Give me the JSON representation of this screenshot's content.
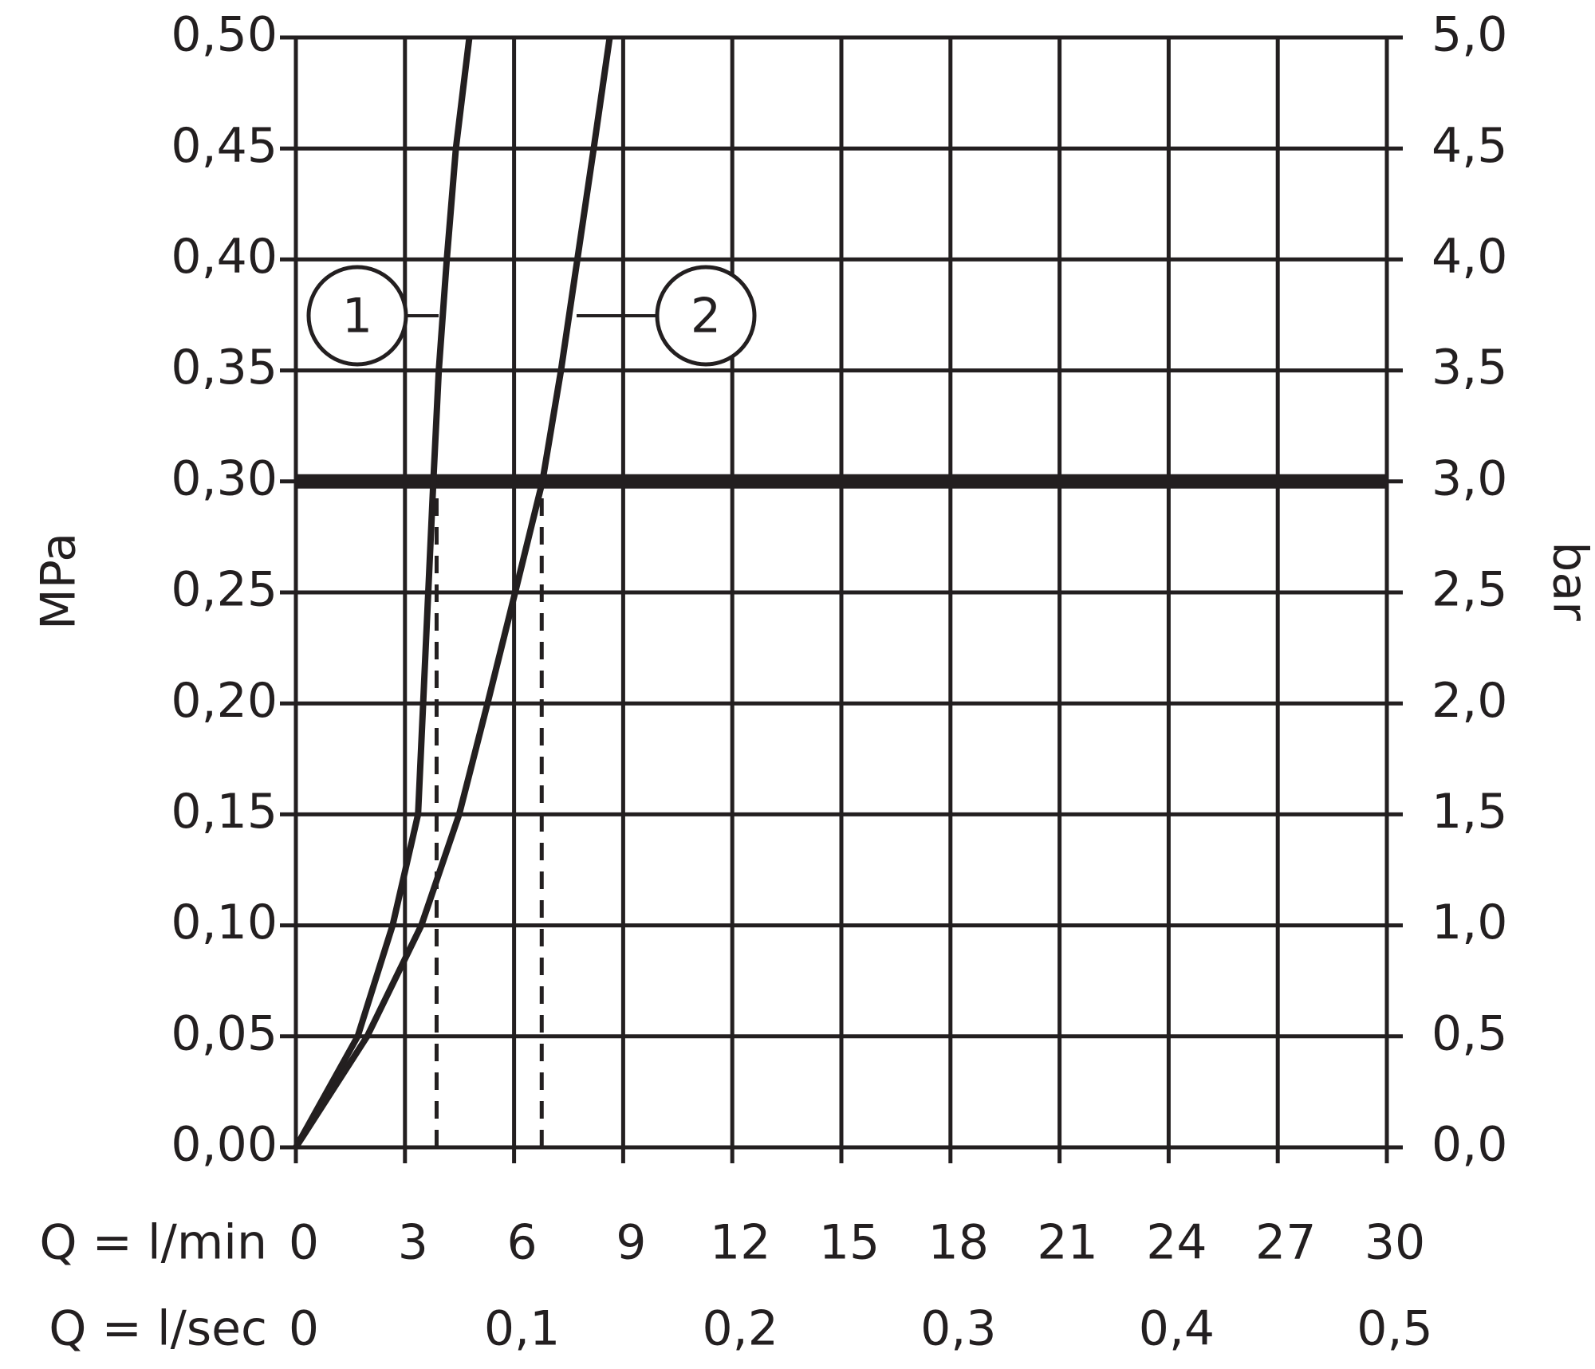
{
  "chart_data": {
    "type": "line",
    "xlabel": "Q = l/min",
    "x2label": "Q = l/sec",
    "ylabel": "MPa",
    "y2label": "bar",
    "xlim": [
      0,
      30
    ],
    "xticks": [
      0,
      3,
      6,
      9,
      12,
      15,
      18,
      21,
      24,
      27,
      30
    ],
    "x2lim": [
      0,
      0.5
    ],
    "x2ticks": [
      0,
      {
        "value": 0.1,
        "label": "0,1"
      },
      {
        "value": 0.2,
        "label": "0,2"
      },
      {
        "value": 0.3,
        "label": "0,3"
      },
      {
        "value": 0.4,
        "label": "0,4"
      },
      {
        "value": 0.5,
        "label": "0,5"
      }
    ],
    "ylim": [
      0,
      0.5
    ],
    "yticks": [
      {
        "value": 0,
        "label": "0,00"
      },
      {
        "value": 0.05,
        "label": "0,05"
      },
      {
        "value": 0.1,
        "label": "0,10"
      },
      {
        "value": 0.15,
        "label": "0,15"
      },
      {
        "value": 0.2,
        "label": "0,20"
      },
      {
        "value": 0.25,
        "label": "0,25"
      },
      {
        "value": 0.3,
        "label": "0,30"
      },
      {
        "value": 0.35,
        "label": "0,35"
      },
      {
        "value": 0.4,
        "label": "0,40"
      },
      {
        "value": 0.45,
        "label": "0,45"
      },
      {
        "value": 0.5,
        "label": "0,50"
      }
    ],
    "y2lim": [
      0,
      5
    ],
    "y2ticks": [
      {
        "value": 0,
        "label": "0,0"
      },
      {
        "value": 0.5,
        "label": "0,5"
      },
      {
        "value": 1,
        "label": "1,0"
      },
      {
        "value": 1.5,
        "label": "1,5"
      },
      {
        "value": 2,
        "label": "2,0"
      },
      {
        "value": 2.5,
        "label": "2,5"
      },
      {
        "value": 3,
        "label": "3,0"
      },
      {
        "value": 3.5,
        "label": "3,5"
      },
      {
        "value": 4,
        "label": "4,0"
      },
      {
        "value": 4.5,
        "label": "4,5"
      },
      {
        "value": 5,
        "label": "5,0"
      }
    ],
    "grid": true,
    "hline": 0.3,
    "vlines": [
      3.87,
      6.76
    ],
    "series": [
      {
        "name": "1",
        "color": "#231f20",
        "x": [
          0,
          1.7,
          2.66,
          3.36,
          3.5,
          3.64,
          3.78,
          3.93,
          4.15,
          4.4,
          4.77
        ],
        "values": [
          0,
          0.05,
          0.1,
          0.15,
          0.2,
          0.25,
          0.3,
          0.35,
          0.4,
          0.45,
          0.5
        ]
      },
      {
        "name": "2",
        "color": "#231f20",
        "x": [
          0,
          1.96,
          3.45,
          4.49,
          5.27,
          6.03,
          6.78,
          7.29,
          7.74,
          8.19,
          8.63
        ],
        "values": [
          0,
          0.05,
          0.1,
          0.15,
          0.2,
          0.25,
          0.3,
          0.35,
          0.4,
          0.45,
          0.5
        ]
      }
    ]
  }
}
